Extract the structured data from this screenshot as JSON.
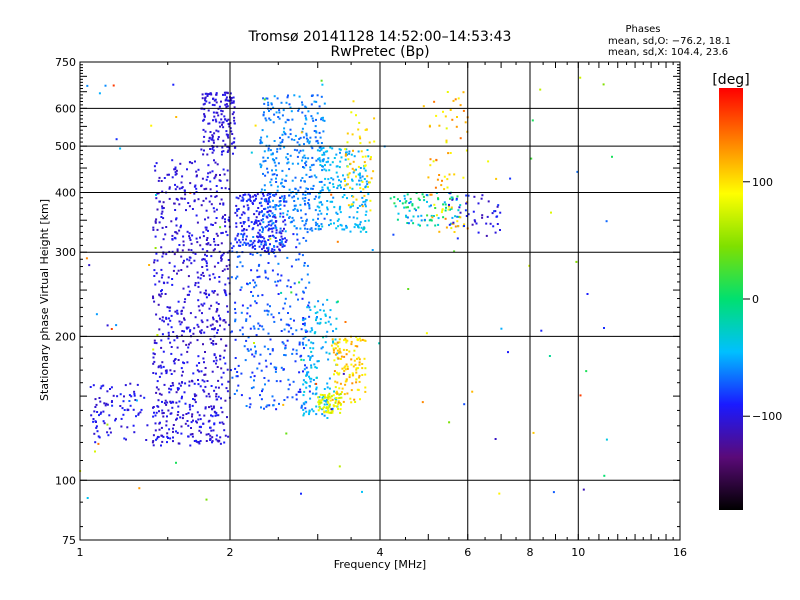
{
  "header": {
    "title": "Tromsø 20141128 14:52:00–14:53:43",
    "subtitle": "RwPretec (Bp)"
  },
  "stats": {
    "heading": "Phases",
    "line_o": "mean, sd,O: −76.2, 18.1",
    "line_x": "mean, sd,X: 104.4, 23.6"
  },
  "chart_data": {
    "type": "scatter",
    "title": "Tromsø 20141128 14:52:00–14:53:43",
    "subtitle": "RwPretec (Bp)",
    "xlabel": "Frequency [MHz]",
    "ylabel": "Stationary phase Virtual Height [km]",
    "x_scale": "log2",
    "y_scale": "log",
    "xlim": [
      1,
      16
    ],
    "ylim": [
      75,
      750
    ],
    "x_ticks": [
      1,
      2,
      4,
      6,
      8,
      10,
      16
    ],
    "x_tick_labels": [
      "1",
      "2",
      "4",
      "6",
      "8",
      "10",
      "16"
    ],
    "x_gridlines": [
      2,
      4,
      6,
      8,
      10
    ],
    "y_ticks": [
      75,
      100,
      200,
      300,
      400,
      500,
      600,
      750
    ],
    "y_tick_labels": [
      "75",
      "100",
      "200",
      "300",
      "400",
      "500",
      "600",
      "750"
    ],
    "y_gridlines": [
      100,
      200,
      300,
      400,
      500,
      600
    ],
    "grid": true,
    "colorbar": {
      "label": "[deg]",
      "range": [
        -180,
        180
      ],
      "ticks": [
        100,
        0,
        -100
      ],
      "tick_labels": [
        "100",
        "0",
        "−100"
      ],
      "colors": [
        "#000000",
        "#5a0a78",
        "#1a1aff",
        "#00c0ff",
        "#00e070",
        "#7fe000",
        "#ffff00",
        "#ff8000",
        "#ff0000"
      ]
    },
    "clusters": [
      {
        "x": [
          1.4,
          2.0
        ],
        "y": [
          118,
          470
        ],
        "phase": [
          -115,
          -90
        ],
        "n": 700
      },
      {
        "x": [
          1.75,
          2.05
        ],
        "y": [
          480,
          650
        ],
        "phase": [
          -110,
          -95
        ],
        "n": 160
      },
      {
        "x": [
          2.05,
          2.6
        ],
        "y": [
          300,
          400
        ],
        "phase": [
          -105,
          -80
        ],
        "n": 220
      },
      {
        "x": [
          2.3,
          3.1
        ],
        "y": [
          330,
          640
        ],
        "phase": [
          -75,
          -50
        ],
        "n": 380
      },
      {
        "x": [
          3.0,
          3.8
        ],
        "y": [
          330,
          500
        ],
        "phase": [
          -60,
          -35
        ],
        "n": 180
      },
      {
        "x": [
          3.4,
          3.9
        ],
        "y": [
          370,
          600
        ],
        "phase": [
          80,
          120
        ],
        "n": 60
      },
      {
        "x": [
          1.05,
          1.9
        ],
        "y": [
          120,
          160
        ],
        "phase": [
          -110,
          -85
        ],
        "n": 160
      },
      {
        "x": [
          2.0,
          2.9
        ],
        "y": [
          140,
          330
        ],
        "phase": [
          -90,
          -60
        ],
        "n": 300
      },
      {
        "x": [
          2.8,
          3.3
        ],
        "y": [
          135,
          240
        ],
        "phase": [
          -60,
          -30
        ],
        "n": 140
      },
      {
        "x": [
          3.0,
          3.35
        ],
        "y": [
          138,
          152
        ],
        "phase": [
          60,
          100
        ],
        "n": 70
      },
      {
        "x": [
          3.2,
          3.75
        ],
        "y": [
          145,
          200
        ],
        "phase": [
          80,
          130
        ],
        "n": 130
      },
      {
        "x": [
          4.2,
          5.8
        ],
        "y": [
          340,
          400
        ],
        "phase": [
          -70,
          20
        ],
        "n": 90
      },
      {
        "x": [
          5.0,
          6.0
        ],
        "y": [
          330,
          650
        ],
        "phase": [
          80,
          140
        ],
        "n": 70
      },
      {
        "x": [
          5.5,
          7.0
        ],
        "y": [
          320,
          400
        ],
        "phase": [
          -120,
          -80
        ],
        "n": 45
      },
      {
        "x": [
          1.0,
          12.0
        ],
        "y": [
          90,
          700
        ],
        "phase": [
          -120,
          160
        ],
        "n": 110
      }
    ]
  }
}
